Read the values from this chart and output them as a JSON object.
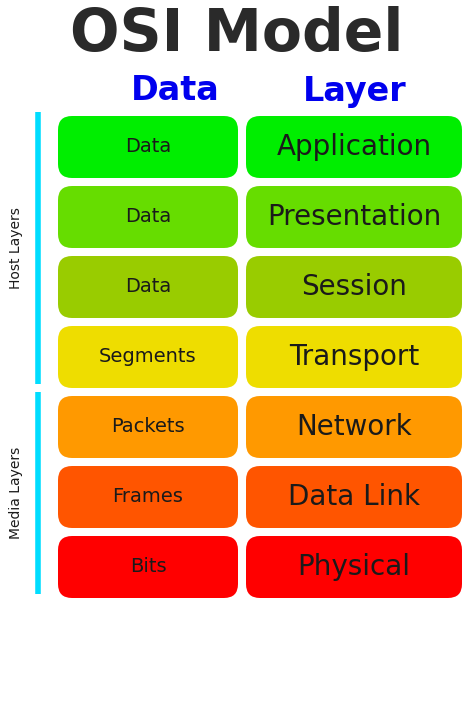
{
  "title": "OSI Model",
  "col_header_data": "Data",
  "col_header_layer": "Layer",
  "background_color": "#ffffff",
  "title_color": "#2a2a2a",
  "header_color": "#0000ee",
  "sidebar_color": "#00ddff",
  "layers": [
    {
      "data_label": "Data",
      "layer_label": "Application",
      "color": "#00ee00"
    },
    {
      "data_label": "Data",
      "layer_label": "Presentation",
      "color": "#66dd00"
    },
    {
      "data_label": "Data",
      "layer_label": "Session",
      "color": "#99cc00"
    },
    {
      "data_label": "Segments",
      "layer_label": "Transport",
      "color": "#eedd00"
    },
    {
      "data_label": "Packets",
      "layer_label": "Network",
      "color": "#ff9900"
    },
    {
      "data_label": "Frames",
      "layer_label": "Data Link",
      "color": "#ff5500"
    },
    {
      "data_label": "Bits",
      "layer_label": "Physical",
      "color": "#ff0000"
    }
  ],
  "host_layers_count": 4,
  "media_layers_count": 3,
  "host_label": "Host Layers",
  "media_label": "Media Layers",
  "text_color": "#1a1a1a",
  "figsize": [
    4.74,
    7.03
  ],
  "dpi": 100
}
